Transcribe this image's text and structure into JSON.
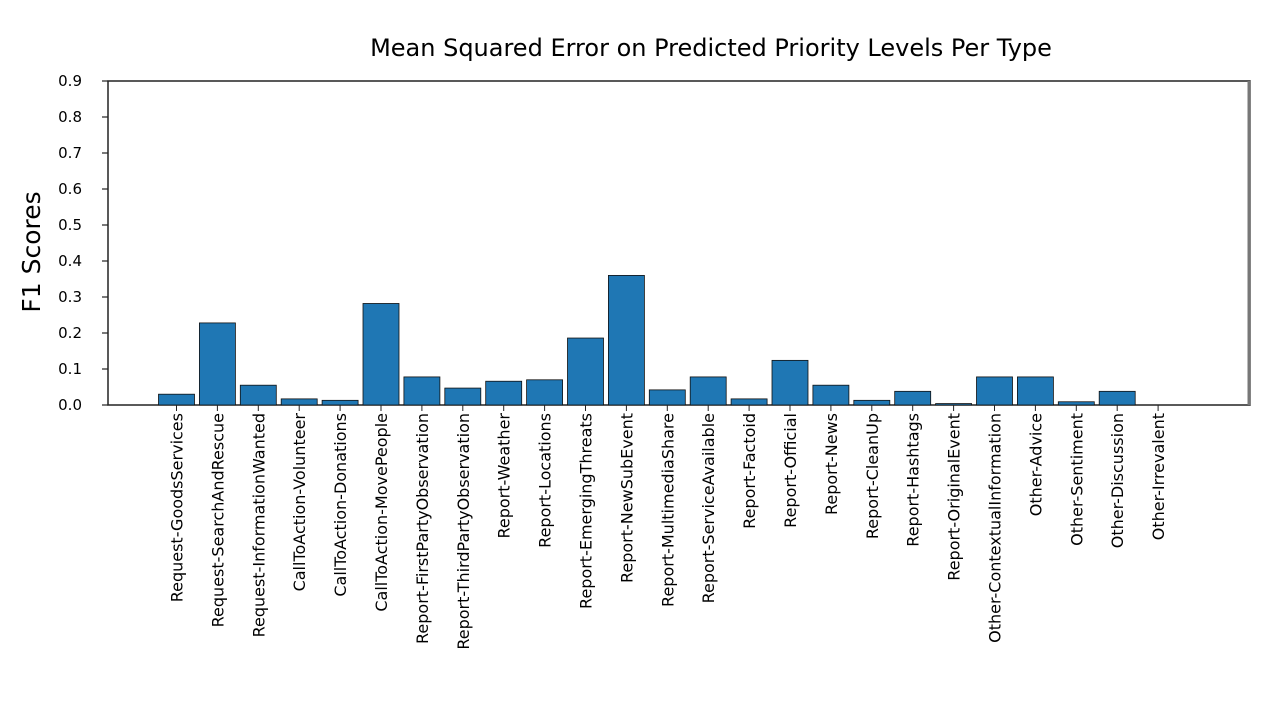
{
  "chart_data": {
    "type": "bar",
    "title": "Mean Squared Error on Predicted Priority Levels Per Type",
    "xlabel": "",
    "ylabel": "F1 Scores",
    "ylim": [
      0,
      0.9
    ],
    "yticks": [
      "0.0",
      "0.1",
      "0.2",
      "0.3",
      "0.4",
      "0.5",
      "0.6",
      "0.7",
      "0.8",
      "0.9"
    ],
    "categories": [
      "Request-GoodsServices",
      "Request-SearchAndRescue",
      "Request-InformationWanted",
      "CallToAction-Volunteer",
      "CallToAction-Donations",
      "CallToAction-MovePeople",
      "Report-FirstPartyObservation",
      "Report-ThirdPartyObservation",
      "Report-Weather",
      "Report-Locations",
      "Report-EmergingThreats",
      "Report-NewSubEvent",
      "Report-MultimediaShare",
      "Report-ServiceAvailable",
      "Report-Factoid",
      "Report-Official",
      "Report-News",
      "Report-CleanUp",
      "Report-Hashtags",
      "Report-OriginalEvent",
      "Other-ContextualInformation",
      "Other-Advice",
      "Other-Sentiment",
      "Other-Discussion",
      "Other-Irrevalent"
    ],
    "values": [
      0.03,
      0.228,
      0.055,
      0.017,
      0.013,
      0.282,
      0.078,
      0.047,
      0.066,
      0.07,
      0.186,
      0.36,
      0.042,
      0.078,
      0.017,
      0.124,
      0.055,
      0.013,
      0.038,
      0.004,
      0.078,
      0.078,
      0.009,
      0.038,
      0.0
    ],
    "bar_color": "#1f77b4",
    "grid": false
  }
}
